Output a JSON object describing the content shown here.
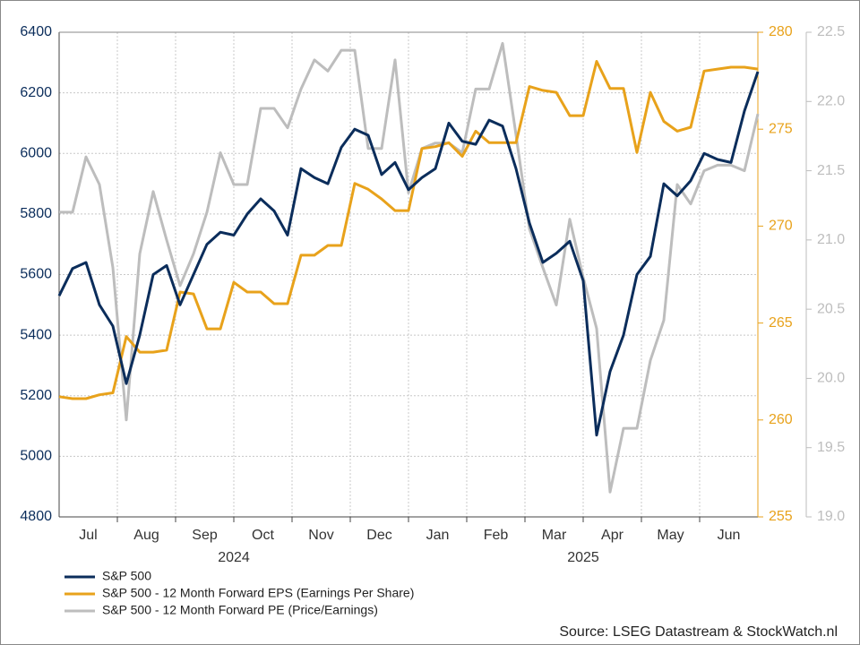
{
  "chart_data": {
    "type": "line",
    "month_labels": [
      "Jul",
      "Aug",
      "Sep",
      "Oct",
      "Nov",
      "Dec",
      "Jan",
      "Feb",
      "Mar",
      "Apr",
      "May",
      "Jun"
    ],
    "year_labels": [
      "2024",
      "2025"
    ],
    "ylim": [
      4800,
      6400
    ],
    "yticks": [
      4800,
      5000,
      5200,
      5400,
      5600,
      5800,
      6000,
      6200,
      6400
    ],
    "y2lim": [
      255,
      280
    ],
    "y2ticks": [
      255,
      260,
      265,
      270,
      275,
      280
    ],
    "y3lim": [
      19,
      22.5
    ],
    "y3ticks": [
      {
        "value": 19,
        "label": "19.0"
      },
      19.5,
      {
        "value": 20,
        "label": "20.0"
      },
      20.5,
      {
        "value": 21,
        "label": "21.0"
      },
      21.5,
      {
        "value": 22,
        "label": "22.0"
      },
      22.5
    ],
    "grid": true,
    "legend": "bottom-left",
    "source": "Source: LSEG Datastream & StockWatch.nl",
    "series": [
      {
        "name": "S&P 500",
        "color": "#0b2d5b",
        "axis": "y",
        "values": [
          5530,
          5620,
          5640,
          5500,
          5430,
          5240,
          5400,
          5600,
          5630,
          5500,
          5600,
          5700,
          5740,
          5730,
          5800,
          5850,
          5810,
          5730,
          5950,
          5920,
          5900,
          6020,
          6080,
          6060,
          5930,
          5970,
          5880,
          5920,
          5950,
          6100,
          6040,
          6030,
          6110,
          6090,
          5950,
          5770,
          5640,
          5670,
          5710,
          5580,
          5070,
          5280,
          5400,
          5600,
          5660,
          5900,
          5860,
          5910,
          6000,
          5980,
          5970,
          6140,
          6270
        ]
      },
      {
        "name": "S&P 500 - 12 Month Forward EPS (Earnings Per Share)",
        "color": "#e8a21b",
        "axis": "y2",
        "values": [
          261.2,
          261.1,
          261.1,
          261.3,
          261.4,
          264.3,
          263.5,
          263.5,
          263.6,
          266.6,
          266.5,
          264.7,
          264.7,
          267.1,
          266.6,
          266.6,
          266.0,
          266.0,
          268.5,
          268.5,
          269.0,
          269.0,
          272.2,
          271.9,
          271.4,
          270.8,
          270.8,
          274.0,
          274.1,
          274.3,
          273.6,
          274.9,
          274.3,
          274.3,
          274.3,
          277.2,
          277.0,
          276.9,
          275.7,
          275.7,
          278.5,
          277.1,
          277.1,
          273.8,
          276.9,
          275.4,
          274.9,
          275.1,
          278.0,
          278.1,
          278.2,
          278.2,
          278.1
        ]
      },
      {
        "name": "S&P 500 - 12 Month Forward PE (Price/Earnings)",
        "color": "#bdbdbd",
        "axis": "y3",
        "values": [
          21.2,
          21.2,
          21.6,
          21.4,
          20.8,
          19.7,
          20.9,
          21.35,
          21.0,
          20.67,
          20.9,
          21.2,
          21.63,
          21.4,
          21.4,
          21.95,
          21.95,
          21.81,
          22.09,
          22.3,
          22.22,
          22.37,
          22.37,
          21.66,
          21.66,
          22.3,
          21.34,
          21.66,
          21.7,
          21.7,
          21.63,
          22.09,
          22.09,
          22.42,
          21.76,
          21.08,
          20.8,
          20.53,
          21.15,
          20.73,
          20.36,
          19.18,
          19.64,
          19.64,
          20.13,
          20.42,
          21.4,
          21.26,
          21.5,
          21.54,
          21.54,
          21.5,
          21.91
        ]
      }
    ]
  }
}
